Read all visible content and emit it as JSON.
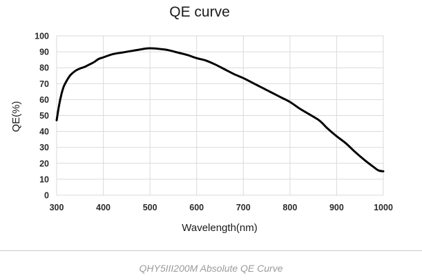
{
  "chart_data": {
    "type": "line",
    "title": "QE curve",
    "xlabel": "Wavelength(nm)",
    "ylabel": "QE(%)",
    "xlim": [
      300,
      1000
    ],
    "ylim": [
      0,
      100
    ],
    "xticks": [
      300,
      400,
      500,
      600,
      700,
      800,
      900,
      1000
    ],
    "yticks": [
      0,
      10,
      20,
      30,
      40,
      50,
      60,
      70,
      80,
      90,
      100
    ],
    "grid": true,
    "line_color": "#000000",
    "series": [
      {
        "x": [
          300,
          305,
          310,
          315,
          320,
          325,
          330,
          340,
          350,
          360,
          370,
          380,
          390,
          400,
          420,
          440,
          460,
          470,
          480,
          490,
          500,
          510,
          520,
          540,
          560,
          580,
          600,
          620,
          640,
          660,
          680,
          700,
          720,
          740,
          760,
          780,
          800,
          820,
          840,
          860,
          870,
          880,
          900,
          920,
          940,
          960,
          980,
          990,
          1000
        ],
        "y": [
          47,
          56,
          63,
          68,
          71,
          73.5,
          75.5,
          78,
          79.5,
          80.5,
          82,
          83.5,
          85.5,
          86.5,
          88.5,
          89.5,
          90.5,
          91,
          91.5,
          92,
          92.2,
          92.1,
          91.8,
          91,
          89.5,
          88,
          86,
          84.5,
          82,
          79,
          76,
          73.5,
          70.5,
          67.5,
          64.5,
          61.5,
          58.5,
          54.5,
          51,
          47.5,
          45,
          42,
          37,
          32.5,
          27,
          22,
          17.5,
          15.5,
          15
        ]
      }
    ]
  },
  "caption": "QHY5III200M Absolute QE Curve"
}
